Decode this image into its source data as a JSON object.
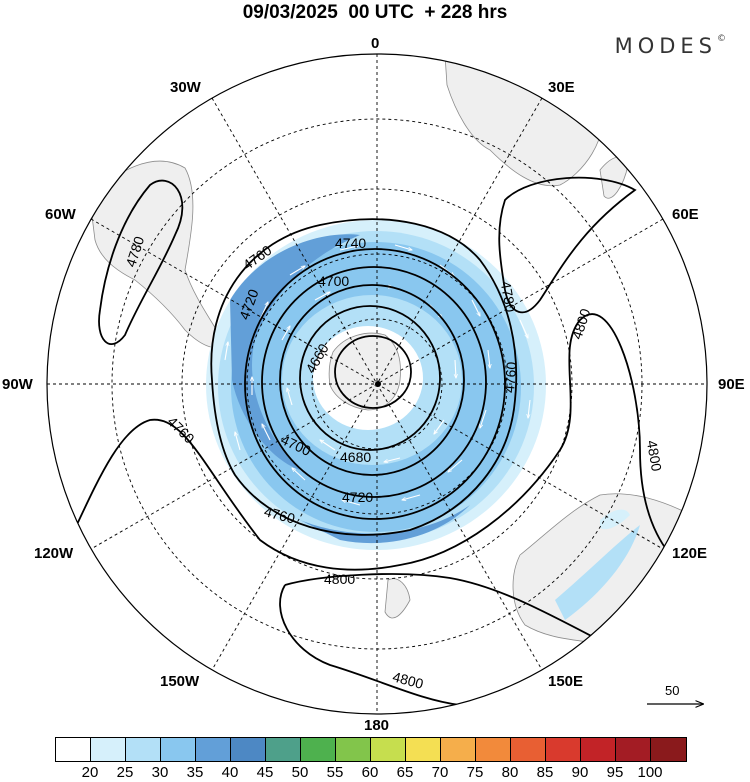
{
  "header": {
    "title": "09/03/2025  00 UTC  + 228 hrs",
    "brand": "MODES",
    "brand_mark": "©"
  },
  "longitude_labels": {
    "lon_0": "0",
    "lon_30E": "30E",
    "lon_60E": "60E",
    "lon_90E": "90E",
    "lon_120E": "120E",
    "lon_150E": "150E",
    "lon_180": "180",
    "lon_150W": "150W",
    "lon_120W": "120W",
    "lon_90W": "90W",
    "lon_60W": "60W",
    "lon_30W": "30W"
  },
  "contour_labels": [
    "4740",
    "4760",
    "4700",
    "4780",
    "4800",
    "4660",
    "4720",
    "4760",
    "4680",
    "4700",
    "4720",
    "4780",
    "4760",
    "4800",
    "4760",
    "4800",
    "4800"
  ],
  "reference_vector": {
    "label": "50"
  },
  "colorbar": {
    "colors": [
      "#ffffff",
      "#d6f0fb",
      "#b3e0f7",
      "#89c7ef",
      "#629fd8",
      "#4d88c4",
      "#4ea08a",
      "#4eb14e",
      "#82c54b",
      "#c6de4e",
      "#f4df53",
      "#f5ae4b",
      "#f28a3b",
      "#e85f33",
      "#d93a2d",
      "#c22327",
      "#a31c24",
      "#8a1a1c"
    ],
    "labels": [
      "20",
      "25",
      "30",
      "35",
      "40",
      "45",
      "50",
      "55",
      "60",
      "65",
      "70",
      "75",
      "80",
      "85",
      "90",
      "95",
      "100"
    ]
  }
}
